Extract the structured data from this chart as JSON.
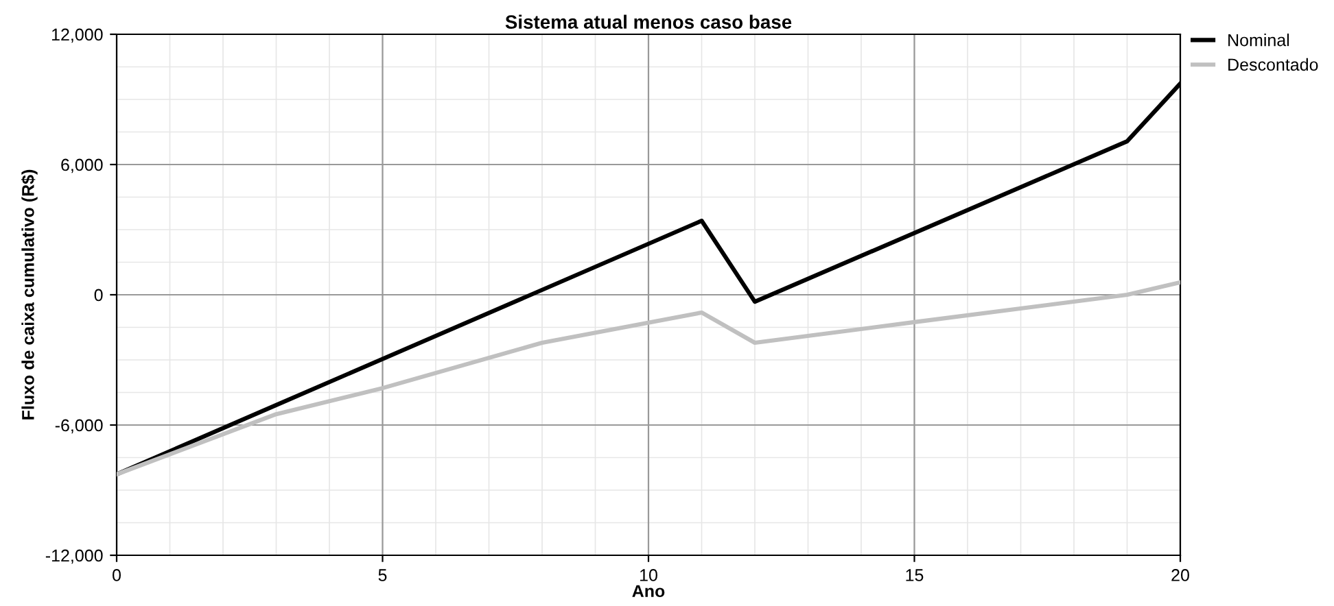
{
  "chart_data": {
    "type": "line",
    "title": "Sistema atual menos caso base",
    "xlabel": "Ano",
    "ylabel": "Fluxo de caixa cumulativo (R$)",
    "series": [
      {
        "name": "Nominal",
        "color": "#000000",
        "x": [
          0,
          3,
          11,
          12,
          19,
          20
        ],
        "values": [
          -8270,
          -5080,
          3410,
          -320,
          7070,
          9730
        ]
      },
      {
        "name": "Descontado",
        "color": "#c0c0c0",
        "x": [
          0,
          3,
          5,
          8,
          11,
          12,
          15,
          19,
          20
        ],
        "values": [
          -8270,
          -5500,
          -4300,
          -2210,
          -820,
          -2210,
          -1260,
          0,
          570
        ]
      }
    ],
    "xlim": [
      0,
      20
    ],
    "xticks": [
      0,
      5,
      10,
      15,
      20
    ],
    "ylim": [
      -12000,
      12000
    ],
    "yticks": [
      {
        "value": -12000,
        "label": "-12,000"
      },
      {
        "value": -6000,
        "label": "-6,000"
      },
      0,
      {
        "value": 6000,
        "label": "6,000"
      },
      {
        "value": 12000,
        "label": "12,000"
      }
    ],
    "grid": true,
    "legend": "top right",
    "line_style": "solid",
    "marker": "none"
  }
}
